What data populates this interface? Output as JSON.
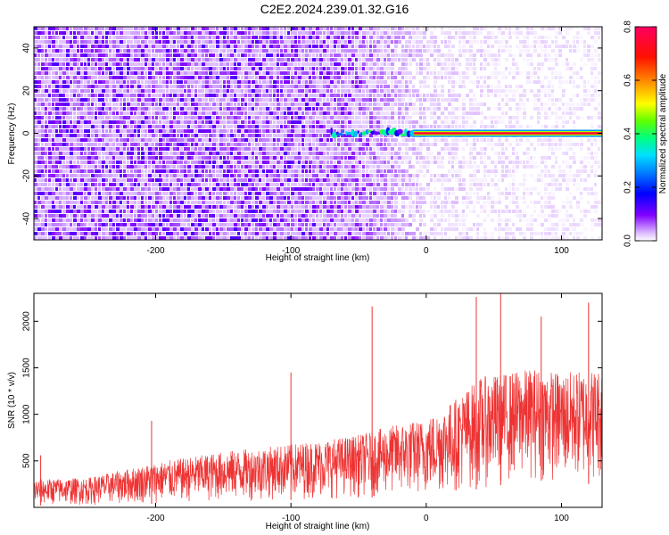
{
  "title": "C2E2.2024.239.01.32.G16",
  "colors": {
    "signal_band": "#ff2a00",
    "snr_line": "#ee3333",
    "background_speckle": "#7a1ef0",
    "colormap": [
      "#ffffff",
      "#8000ff",
      "#0000ff",
      "#00c0ff",
      "#00ff80",
      "#80ff00",
      "#ffff00",
      "#ff8000",
      "#ff0000",
      "#ff0070"
    ]
  },
  "chart_data": [
    {
      "type": "heatmap",
      "xlabel": "Height of straight line (km)",
      "ylabel": "Frequency (Hz)",
      "xlim": [
        -290,
        130
      ],
      "ylim": [
        -50,
        50
      ],
      "xticks": [
        -200,
        -100,
        0,
        100
      ],
      "xtick_labels": [
        "-200",
        "-100",
        "0",
        "100"
      ],
      "yticks": [
        -40,
        -20,
        0,
        20,
        40
      ],
      "ytick_labels": [
        "-40",
        "-20",
        "0",
        "20",
        "40"
      ],
      "colorbar": {
        "label": "Normalized spectral amplitude",
        "range": [
          0,
          0.8
        ],
        "ticks": [
          0,
          0.2,
          0.4,
          0.6,
          0.8
        ],
        "tick_labels": [
          "0.0",
          "0.2",
          "0.4",
          "0.6",
          "0.8"
        ]
      },
      "signal_band": {
        "frequency_hz": 0,
        "x_start": -70,
        "x_end": 130,
        "amplitude_strong": 0.75,
        "amplitude_onset": 0.35,
        "onset_x_end": -10
      },
      "noise_amplitude_by_height": {
        "x": [
          -290,
          -100,
          -60,
          -30,
          0,
          50,
          130
        ],
        "amplitude": [
          0.06,
          0.06,
          0.05,
          0.03,
          0.015,
          0.01,
          0.008
        ]
      },
      "grid": false
    },
    {
      "type": "line",
      "xlabel": "Height of straight line (km)",
      "ylabel": "SNR (10 * v/v)",
      "xlim": [
        -290,
        130
      ],
      "ylim": [
        0,
        2300
      ],
      "xticks": [
        -200,
        -100,
        0,
        100
      ],
      "xtick_labels": [
        "-200",
        "-100",
        "0",
        "100"
      ],
      "yticks": [
        500,
        1000,
        1500,
        2000
      ],
      "ytick_labels": [
        "500",
        "1000",
        "1500",
        "2000"
      ],
      "envelope": {
        "x": [
          -290,
          -250,
          -200,
          -150,
          -100,
          -50,
          -20,
          0,
          20,
          40,
          60,
          80,
          100,
          130
        ],
        "upper": [
          300,
          320,
          480,
          600,
          680,
          780,
          900,
          950,
          1150,
          1400,
          1450,
          1500,
          1450,
          1500
        ],
        "lower": [
          20,
          20,
          40,
          60,
          80,
          100,
          120,
          120,
          150,
          200,
          250,
          300,
          250,
          250
        ]
      },
      "spikes": [
        {
          "x": -285,
          "y": 560
        },
        {
          "x": -203,
          "y": 930
        },
        {
          "x": -100,
          "y": 1450
        },
        {
          "x": -40,
          "y": 2160
        },
        {
          "x": 37,
          "y": 2260
        },
        {
          "x": 55,
          "y": 2300
        },
        {
          "x": 85,
          "y": 2050
        },
        {
          "x": 120,
          "y": 2200
        }
      ],
      "grid": false
    }
  ]
}
